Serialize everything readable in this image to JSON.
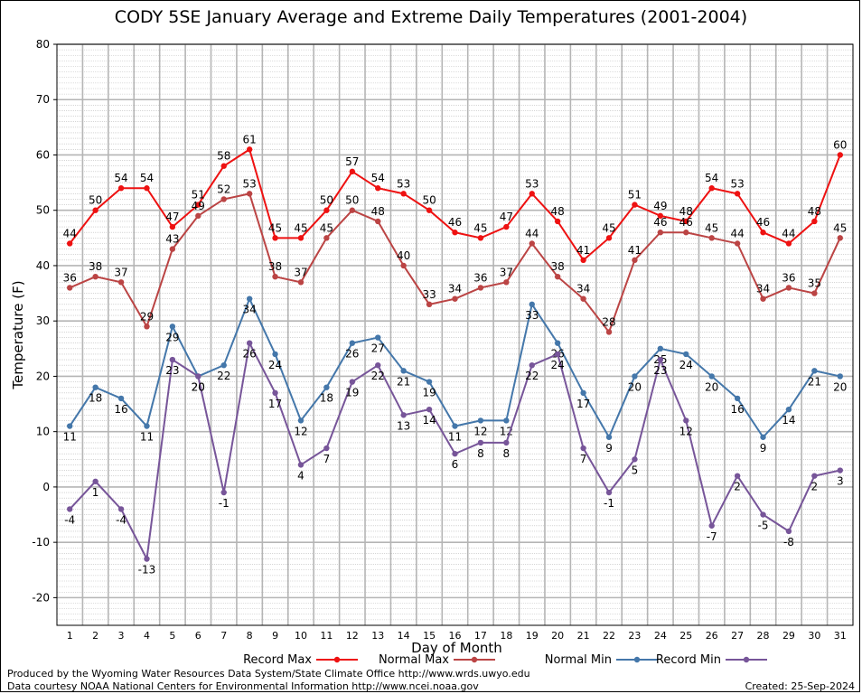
{
  "chart_data": {
    "type": "line",
    "title": "CODY 5SE January Average and Extreme Daily Temperatures (2001-2004)",
    "xlabel": "Day of Month",
    "ylabel": "Temperature (F)",
    "ylim": [
      -25,
      80
    ],
    "yticks": [
      -20,
      -10,
      0,
      10,
      20,
      30,
      40,
      50,
      60,
      70,
      80
    ],
    "x": [
      1,
      2,
      3,
      4,
      5,
      6,
      7,
      8,
      9,
      10,
      11,
      12,
      13,
      14,
      15,
      16,
      17,
      18,
      19,
      20,
      21,
      22,
      23,
      24,
      25,
      26,
      27,
      28,
      29,
      30,
      31
    ],
    "grid": true,
    "legend_position": "bottom",
    "series": [
      {
        "name": "Record Max",
        "color": "#ee1111",
        "values": [
          44,
          50,
          54,
          54,
          47,
          51,
          58,
          61,
          45,
          45,
          50,
          57,
          54,
          53,
          50,
          46,
          45,
          47,
          53,
          48,
          41,
          45,
          51,
          49,
          48,
          54,
          53,
          46,
          44,
          48,
          60
        ]
      },
      {
        "name": "Normal Max",
        "color": "#bb4444",
        "values": [
          36,
          38,
          37,
          29,
          43,
          49,
          52,
          53,
          38,
          37,
          45,
          50,
          48,
          40,
          33,
          34,
          36,
          37,
          44,
          38,
          34,
          28,
          41,
          46,
          46,
          45,
          44,
          34,
          36,
          35,
          45
        ]
      },
      {
        "name": "Normal Min",
        "color": "#4477aa",
        "values": [
          11,
          18,
          16,
          11,
          29,
          20,
          22,
          34,
          24,
          12,
          18,
          26,
          27,
          21,
          19,
          11,
          12,
          12,
          33,
          26,
          17,
          9,
          20,
          25,
          24,
          20,
          16,
          9,
          14,
          21,
          20
        ]
      },
      {
        "name": "Record Min",
        "color": "#775599",
        "values": [
          -4,
          1,
          -4,
          -13,
          23,
          20,
          -1,
          26,
          17,
          4,
          7,
          19,
          22,
          13,
          14,
          6,
          8,
          8,
          22,
          24,
          7,
          -1,
          5,
          23,
          12,
          -7,
          2,
          -5,
          -8,
          2,
          3
        ]
      }
    ]
  },
  "footer": {
    "credit_line1": "Produced by the Wyoming Water Resources Data System/State Climate Office http://www.wrds.uwyo.edu",
    "credit_line2": "Data courtesy NOAA National Centers for Environmental Information http://www.ncei.noaa.gov",
    "created": "Created:  25-Sep-2024"
  }
}
